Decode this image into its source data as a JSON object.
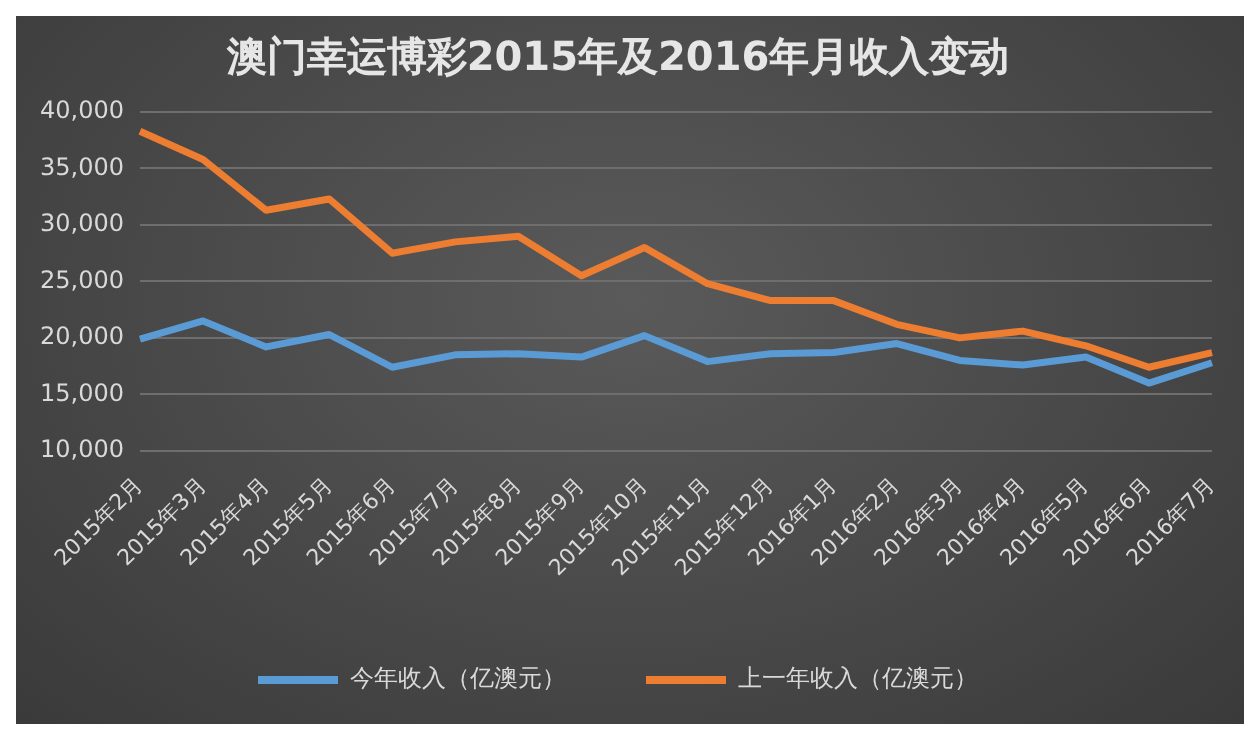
{
  "chart_data": {
    "type": "line",
    "title": "澳门幸运博彩2015年及2016年月收入变动",
    "categories": [
      "2015年2月",
      "2015年3月",
      "2015年4月",
      "2015年5月",
      "2015年6月",
      "2015年7月",
      "2015年8月",
      "2015年9月",
      "2015年10月",
      "2015年11月",
      "2015年12月",
      "2016年1月",
      "2016年2月",
      "2016年3月",
      "2016年4月",
      "2016年5月",
      "2016年6月",
      "2016年7月"
    ],
    "series": [
      {
        "name": "今年收入（亿澳元）",
        "color": "#5b9bd5",
        "values": [
          19900,
          21500,
          19200,
          20300,
          17400,
          18500,
          18600,
          18300,
          20200,
          17900,
          18600,
          18700,
          19500,
          18000,
          17600,
          18300,
          16000,
          17800
        ]
      },
      {
        "name": "上一年收入（亿澳元）",
        "color": "#ed7d31",
        "values": [
          38300,
          35800,
          31300,
          32300,
          27500,
          28500,
          29000,
          25500,
          28000,
          24800,
          23300,
          23300,
          21200,
          20000,
          20600,
          19300,
          17400,
          18700
        ]
      }
    ],
    "ylim": [
      10000,
      40000
    ],
    "yticks": [
      {
        "value": 10000,
        "label": "10,000"
      },
      {
        "value": 15000,
        "label": "15,000"
      },
      {
        "value": 20000,
        "label": "20,000"
      },
      {
        "value": 25000,
        "label": "25,000"
      },
      {
        "value": 30000,
        "label": "30,000"
      },
      {
        "value": 35000,
        "label": "35,000"
      },
      {
        "value": 40000,
        "label": "40,000"
      }
    ],
    "grid": "y",
    "legend": "bottom",
    "marker": "none",
    "line_style": "solid"
  }
}
